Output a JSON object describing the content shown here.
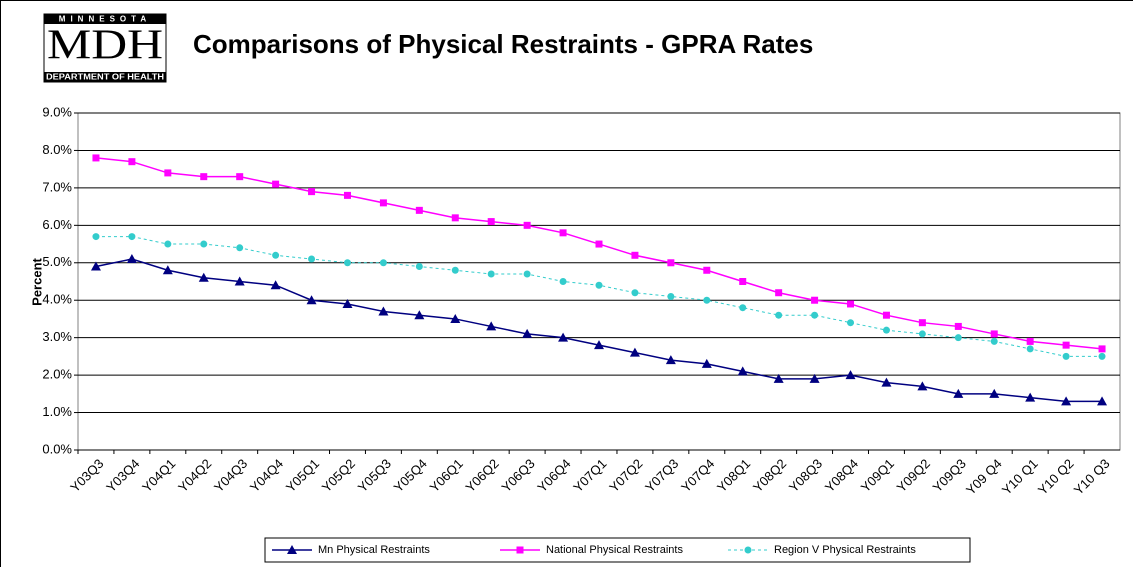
{
  "chart_data": {
    "type": "line",
    "title": "Comparisons of Physical Restraints - GPRA Rates",
    "logo": {
      "top": "MINNESOTA",
      "main": "MDH",
      "bottom": "DEPARTMENT OF HEALTH"
    },
    "y_label": "Percent",
    "categories": [
      "Y03Q3",
      "Y03Q4",
      "Y04Q1",
      "Y04Q2",
      "Y04Q3",
      "Y04Q4",
      "Y05Q1",
      "Y05Q2",
      "Y05Q3",
      "Y05Q4",
      "Y06Q1",
      "Y06Q2",
      "Y06Q3",
      "Y06Q4",
      "Y07Q1",
      "Y07Q2",
      "Y07Q3",
      "Y07Q4",
      "Y08Q1",
      "Y08Q2",
      "Y08Q3",
      "Y08Q4",
      "Y09Q1",
      "Y09Q2",
      "Y09Q3",
      "Y09 Q4",
      "Y10 Q1",
      "Y10 Q2",
      "Y10 Q3"
    ],
    "series": [
      {
        "name": "Mn Physical Restraints",
        "color": "#000080",
        "marker": "triangle",
        "dashed": false,
        "values": [
          4.9,
          5.1,
          4.8,
          4.6,
          4.5,
          4.4,
          4.0,
          3.9,
          3.7,
          3.6,
          3.5,
          3.3,
          3.1,
          3.0,
          2.8,
          2.6,
          2.4,
          2.3,
          2.1,
          1.9,
          1.9,
          2.0,
          1.8,
          1.7,
          1.5,
          1.5,
          1.4,
          1.3,
          1.3
        ]
      },
      {
        "name": "National Physical Restraints",
        "color": "#ff00ff",
        "marker": "square",
        "dashed": false,
        "values": [
          7.8,
          7.7,
          7.4,
          7.3,
          7.3,
          7.1,
          6.9,
          6.8,
          6.6,
          6.4,
          6.2,
          6.1,
          6.0,
          5.8,
          5.5,
          5.2,
          5.0,
          4.8,
          4.5,
          4.2,
          4.0,
          3.9,
          3.6,
          3.4,
          3.3,
          3.1,
          2.9,
          2.8,
          2.7
        ]
      },
      {
        "name": "Region V Physical Restraints",
        "color": "#33cccc",
        "marker": "circle",
        "dashed": true,
        "values": [
          5.7,
          5.7,
          5.5,
          5.5,
          5.4,
          5.2,
          5.1,
          5.0,
          5.0,
          4.9,
          4.8,
          4.7,
          4.7,
          4.5,
          4.4,
          4.2,
          4.1,
          4.0,
          3.8,
          3.6,
          3.6,
          3.4,
          3.2,
          3.1,
          3.0,
          2.9,
          2.7,
          2.5,
          2.5
        ]
      }
    ],
    "ylim": [
      0,
      9
    ],
    "yticks": [
      {
        "value": 0,
        "label": "0.0%"
      },
      {
        "value": 1,
        "label": "1.0%"
      },
      {
        "value": 2,
        "label": "2.0%"
      },
      {
        "value": 3,
        "label": "3.0%"
      },
      {
        "value": 4,
        "label": "4.0%"
      },
      {
        "value": 5,
        "label": "5.0%"
      },
      {
        "value": 6,
        "label": "6.0%"
      },
      {
        "value": 7,
        "label": "7.0%"
      },
      {
        "value": 8,
        "label": "8.0%"
      },
      {
        "value": 9,
        "label": "9.0%"
      }
    ],
    "grid": true,
    "legend": "bottom"
  }
}
